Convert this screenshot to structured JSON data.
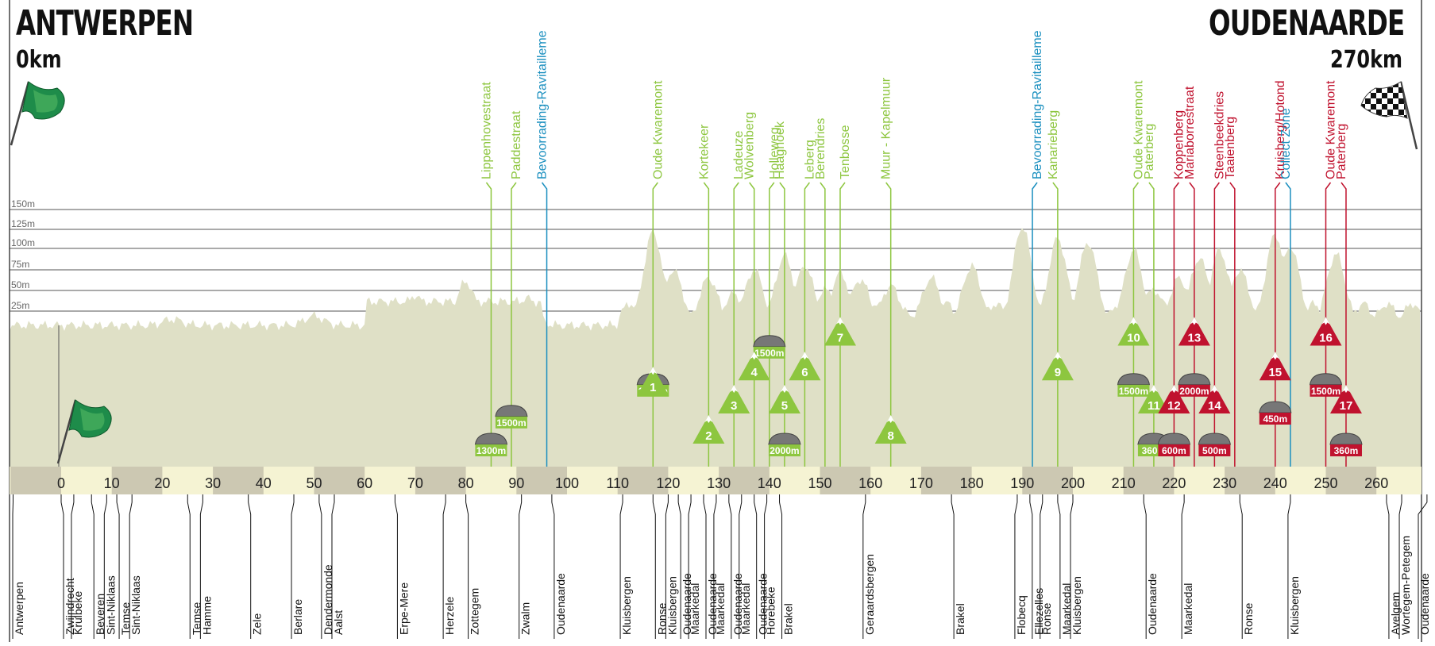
{
  "header": {
    "start_city": "ANTWERPEN",
    "start_distance": "0km",
    "finish_city": "OUDENAARDE",
    "finish_distance": "270km"
  },
  "altitude_labels": [
    "150m",
    "125m",
    "100m",
    "75m",
    "50m",
    "25m"
  ],
  "axis": {
    "ticks": [
      "0",
      "10",
      "20",
      "30",
      "40",
      "50",
      "60",
      "70",
      "80",
      "90",
      "100",
      "110",
      "120",
      "130",
      "140",
      "150",
      "160",
      "170",
      "180",
      "190",
      "200",
      "210",
      "220",
      "230",
      "240",
      "250",
      "260"
    ]
  },
  "colors": {
    "profile": "#dfe0c6",
    "climb": "#8dc63f",
    "climb_red": "#c0122e",
    "feed": "#1a8fbf",
    "axis_light": "#f5f3d3",
    "axis_dark": "#ccc8b2"
  },
  "features": [
    {
      "name": "Lippenhovestraat",
      "km": 85,
      "color": "green"
    },
    {
      "name": "Paddestraat",
      "km": 89,
      "color": "green"
    },
    {
      "name": "Bevoorrading-Ravitailleme",
      "km": 96,
      "color": "blue"
    },
    {
      "name": "Oude Kwaremont",
      "km": 117,
      "color": "green"
    },
    {
      "name": "Kortekeer",
      "km": 128,
      "color": "green"
    },
    {
      "name": "Ladeuze",
      "km": 133,
      "color": "green"
    },
    {
      "name": "Wolvenberg",
      "km": 137,
      "color": "green"
    },
    {
      "name": "Holleweg",
      "km": 140,
      "color": "green"
    },
    {
      "name": "Haaghoek",
      "km": 143,
      "color": "green"
    },
    {
      "name": "Leberg",
      "km": 147,
      "color": "green"
    },
    {
      "name": "Berendries",
      "km": 151,
      "color": "green"
    },
    {
      "name": "Tenbosse",
      "km": 154,
      "color": "green"
    },
    {
      "name": "Muur - Kapelmuur",
      "km": 164,
      "color": "green"
    },
    {
      "name": "Bevoorrading-Ravitailleme",
      "km": 192,
      "color": "blue"
    },
    {
      "name": "Kanarieberg",
      "km": 197,
      "color": "green"
    },
    {
      "name": "Oude Kwaremont",
      "km": 212,
      "color": "green"
    },
    {
      "name": "Paterberg",
      "km": 216,
      "color": "green"
    },
    {
      "name": "Koppenberg",
      "km": 220,
      "color": "red"
    },
    {
      "name": "Mariaborrestraat",
      "km": 224,
      "color": "red"
    },
    {
      "name": "Steenbeekdries",
      "km": 228,
      "color": "red"
    },
    {
      "name": "Taaienberg",
      "km": 232,
      "color": "red"
    },
    {
      "name": "Kruisberg/Hotond",
      "km": 240,
      "color": "red"
    },
    {
      "name": "Collect Zone",
      "km": 243,
      "color": "blue"
    },
    {
      "name": "Oude Kwaremont",
      "km": 250,
      "color": "red"
    },
    {
      "name": "Paterberg",
      "km": 254,
      "color": "red"
    }
  ],
  "climbs": [
    {
      "number": "1",
      "km": 117,
      "level": 0.42,
      "color": "green"
    },
    {
      "number": "2",
      "km": 128,
      "level": 0.1,
      "color": "green"
    },
    {
      "number": "3",
      "km": 133,
      "level": 0.3,
      "color": "green"
    },
    {
      "number": "4",
      "km": 137,
      "level": 0.52,
      "color": "green"
    },
    {
      "number": "5",
      "km": 143,
      "level": 0.3,
      "color": "green"
    },
    {
      "number": "6",
      "km": 147,
      "level": 0.52,
      "color": "green"
    },
    {
      "number": "7",
      "km": 154,
      "level": 0.75,
      "color": "green"
    },
    {
      "number": "8",
      "km": 164,
      "level": 0.1,
      "color": "green"
    },
    {
      "number": "9",
      "km": 197,
      "level": 0.52,
      "color": "green"
    },
    {
      "number": "10",
      "km": 212,
      "level": 0.75,
      "color": "green"
    },
    {
      "number": "11",
      "km": 216,
      "level": 0.3,
      "color": "green"
    },
    {
      "number": "12",
      "km": 220,
      "level": 0.3,
      "color": "red"
    },
    {
      "number": "13",
      "km": 224,
      "level": 0.75,
      "color": "red"
    },
    {
      "number": "14",
      "km": 228,
      "level": 0.3,
      "color": "red"
    },
    {
      "number": "15",
      "km": 240,
      "level": 0.52,
      "color": "red"
    },
    {
      "number": "16",
      "km": 250,
      "level": 0.75,
      "color": "red"
    },
    {
      "number": "17",
      "km": 254,
      "level": 0.3,
      "color": "red"
    }
  ],
  "cobbles": [
    {
      "label": "1300m",
      "km": 85,
      "level": 0.05,
      "color": "green"
    },
    {
      "label": "1500m",
      "km": 89,
      "level": 0.27,
      "color": "green"
    },
    {
      "label": "1500m",
      "km": 117,
      "level": 0.52,
      "color": "green"
    },
    {
      "label": "1500m",
      "km": 140,
      "level": 0.82,
      "color": "green"
    },
    {
      "label": "2000m",
      "km": 143,
      "level": 0.05,
      "color": "green"
    },
    {
      "label": "1500m",
      "km": 212,
      "level": 0.52,
      "color": "green"
    },
    {
      "label": "360m",
      "km": 216,
      "level": 0.05,
      "color": "green"
    },
    {
      "label": "600m",
      "km": 220,
      "level": 0.05,
      "color": "red"
    },
    {
      "label": "2000m",
      "km": 224,
      "level": 0.52,
      "color": "red"
    },
    {
      "label": "500m",
      "km": 228,
      "level": 0.05,
      "color": "red"
    },
    {
      "label": "450m",
      "km": 240,
      "level": 0.3,
      "color": "red"
    },
    {
      "label": "1500m",
      "km": 250,
      "level": 0.52,
      "color": "red"
    },
    {
      "label": "360m",
      "km": 254,
      "level": 0.05,
      "color": "red"
    }
  ],
  "towns": [
    {
      "name": "Antwerpen",
      "km": -9.5
    },
    {
      "name": "Zwijndrecht",
      "km": 0
    },
    {
      "name": "Kruibeke",
      "km": 2.5
    },
    {
      "name": "Beveren",
      "km": 6
    },
    {
      "name": "Sint-Niklaas",
      "km": 9
    },
    {
      "name": "Temse",
      "km": 11
    },
    {
      "name": "Sint-Niklaas",
      "km": 14
    },
    {
      "name": "Temse",
      "km": 25
    },
    {
      "name": "Hamme",
      "km": 28
    },
    {
      "name": "Zele",
      "km": 37
    },
    {
      "name": "Berlare",
      "km": 46
    },
    {
      "name": "Dendermonde",
      "km": 51
    },
    {
      "name": "Aalst",
      "km": 54
    },
    {
      "name": "Erpe-Mere",
      "km": 66
    },
    {
      "name": "Herzele",
      "km": 76
    },
    {
      "name": "Zottegem",
      "km": 80
    },
    {
      "name": "Zwalm",
      "km": 91
    },
    {
      "name": "Oudenaarde",
      "km": 97
    },
    {
      "name": "Kluisbergen",
      "km": 111
    },
    {
      "name": "Ronse",
      "km": 117
    },
    {
      "name": "Kluisbergen",
      "km": 120
    },
    {
      "name": "Oudenaarde",
      "km": 122
    },
    {
      "name": "Maarkedal",
      "km": 124.5
    },
    {
      "name": "Oudenaarde",
      "km": 127
    },
    {
      "name": "Maarkedal",
      "km": 129.5
    },
    {
      "name": "Oudenaarde",
      "km": 132
    },
    {
      "name": "Maarkedal",
      "km": 134.5
    },
    {
      "name": "Oudenaarde",
      "km": 137
    },
    {
      "name": "Horebeke",
      "km": 139.5
    },
    {
      "name": "Brakel",
      "km": 142
    },
    {
      "name": "Geraardsbergen",
      "km": 159
    },
    {
      "name": "Brakel",
      "km": 176
    },
    {
      "name": "Flobecq",
      "km": 189
    },
    {
      "name": "Ellezelles",
      "km": 191.5
    },
    {
      "name": "Ronse",
      "km": 194
    },
    {
      "name": "Maarkedal",
      "km": 197
    },
    {
      "name": "Kluisbergen",
      "km": 200
    },
    {
      "name": "Oudenaarde",
      "km": 214
    },
    {
      "name": "Maarkedal",
      "km": 222
    },
    {
      "name": "Ronse",
      "km": 233
    },
    {
      "name": "Kluisbergen",
      "km": 243
    },
    {
      "name": "Avelgem",
      "km": 262
    },
    {
      "name": "Wortegem-Petegem",
      "km": 265
    },
    {
      "name": "Oudenaarde",
      "km": 270
    }
  ]
}
